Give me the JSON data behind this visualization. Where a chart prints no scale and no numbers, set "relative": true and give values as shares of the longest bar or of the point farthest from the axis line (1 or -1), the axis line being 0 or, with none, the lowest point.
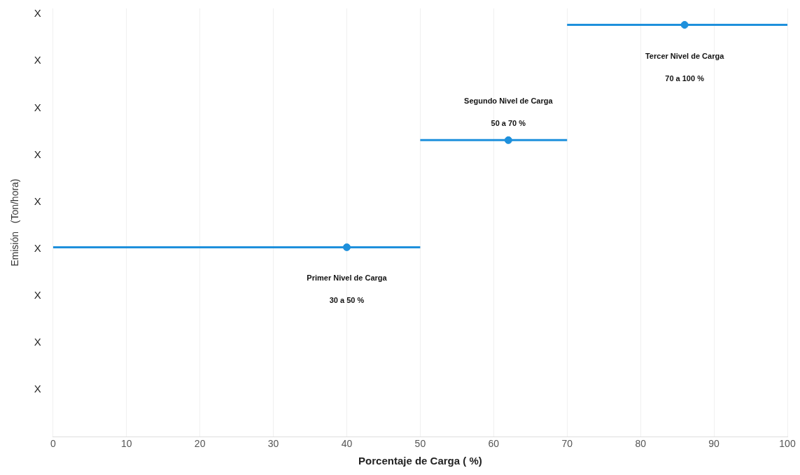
{
  "chart_data": {
    "type": "line",
    "relative": true,
    "xlabel": "Porcentaje de Carga ( %)",
    "ylabel": "Emisión   (Ton/hora)",
    "xlim": [
      0,
      100
    ],
    "xticks": [
      0,
      10,
      20,
      30,
      40,
      50,
      60,
      70,
      80,
      90,
      100
    ],
    "grid": "x",
    "legend": false,
    "series": [
      {
        "type": "line",
        "color": "#1e90dc",
        "x": [
          0,
          50
        ],
        "values": [
          0.46,
          0.46
        ],
        "marker": "none"
      },
      {
        "type": "line",
        "color": "#1e90dc",
        "x": [
          50,
          70
        ],
        "values": [
          0.72,
          0.72
        ],
        "marker": "none"
      },
      {
        "type": "line",
        "color": "#1e90dc",
        "x": [
          70,
          100
        ],
        "values": [
          1.0,
          1.0
        ],
        "marker": "none"
      },
      {
        "type": "scatter",
        "color": "#1e90dc",
        "x": [
          40,
          62,
          86
        ],
        "values": [
          0.46,
          0.72,
          1.0
        ],
        "marker": "circle"
      }
    ],
    "annotations": [
      "Primer Nivel de Carga",
      "30 a 50 %",
      "Segundo Nivel de Carga",
      "50 a 70 %",
      "Tercer Nivel de Carga",
      "70 a 100 %",
      "X",
      "X",
      "X",
      "X",
      "X",
      "X",
      "X",
      "X",
      "X"
    ]
  }
}
